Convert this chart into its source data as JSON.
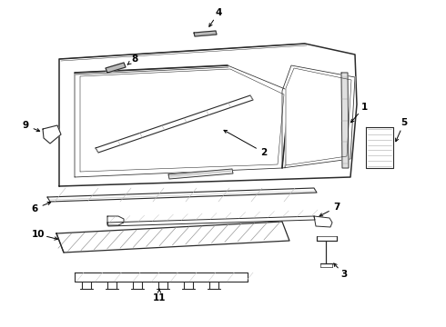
{
  "bg_color": "#ffffff",
  "line_color": "#2a2a2a",
  "fig_width": 4.9,
  "fig_height": 3.6,
  "dpi": 100,
  "lw_main": 1.1,
  "lw_thin": 0.55,
  "lw_label": 0.7,
  "label_fs": 7.5,
  "hatch_color": "#aaaaaa",
  "gray_fill": "#cccccc"
}
